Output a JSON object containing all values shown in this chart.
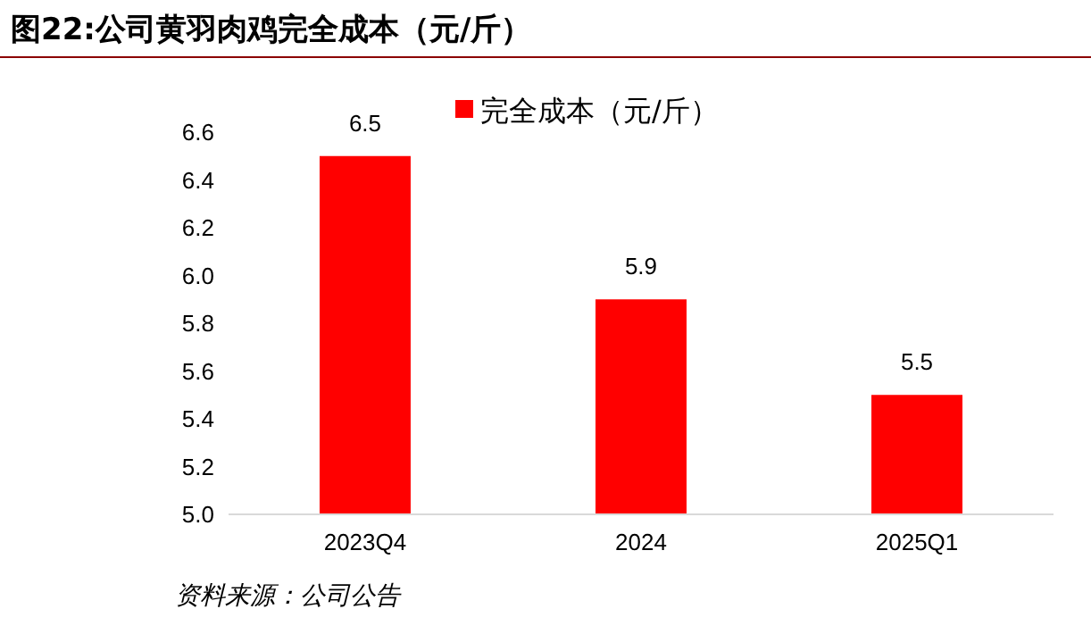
{
  "chart_data": {
    "type": "bar",
    "title": "图22:公司黄羽肉鸡完全成本（元/斤）",
    "categories": [
      "2023Q4",
      "2024",
      "2025Q1"
    ],
    "series": [
      {
        "name": "完全成本（元/斤）",
        "color": "#ff0000",
        "values": [
          6.5,
          5.9,
          5.5
        ]
      }
    ],
    "ylim": [
      5.0,
      6.6
    ],
    "yticks": [
      {
        "value": 5.0,
        "label": "5.0"
      },
      {
        "value": 5.2,
        "label": "5.2"
      },
      {
        "value": 5.4,
        "label": "5.4"
      },
      {
        "value": 5.6,
        "label": "5.6"
      },
      {
        "value": 5.8,
        "label": "5.8"
      },
      {
        "value": 6.0,
        "label": "6.0"
      },
      {
        "value": 6.2,
        "label": "6.2"
      },
      {
        "value": 6.4,
        "label": "6.4"
      },
      {
        "value": 6.6,
        "label": "6.6"
      }
    ],
    "data_labels": true,
    "legend": "top",
    "grid": false,
    "annotations": [
      "资料来源：公司公告"
    ]
  }
}
